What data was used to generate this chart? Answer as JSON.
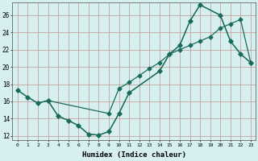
{
  "xlabel": "Humidex (Indice chaleur)",
  "bg_color": "#d6f0f0",
  "grid_color": "#c8a0a0",
  "line_color": "#1a6b5a",
  "line1_x": [
    0,
    1,
    2,
    3,
    4,
    5,
    6,
    7,
    8,
    9,
    10,
    11,
    14,
    15,
    16,
    17,
    18,
    20,
    21,
    22,
    23
  ],
  "line1_y": [
    17.3,
    16.5,
    15.8,
    16.1,
    14.3,
    13.8,
    13.2,
    12.2,
    12.1,
    12.5,
    14.6,
    17.0,
    19.5,
    21.5,
    22.5,
    25.3,
    27.2,
    26.0,
    23.0,
    21.5,
    20.5
  ],
  "line2_x": [
    0,
    1,
    2,
    3,
    9,
    10,
    11,
    12,
    13,
    14,
    15,
    16,
    17,
    18,
    19,
    20,
    21,
    22,
    23
  ],
  "line2_y": [
    17.3,
    16.5,
    15.8,
    16.1,
    14.6,
    17.5,
    18.2,
    19.0,
    19.8,
    20.5,
    21.5,
    22.0,
    22.5,
    23.0,
    23.5,
    24.5,
    25.0,
    25.5,
    20.5
  ],
  "line3_x": [
    3,
    4,
    5,
    6,
    7,
    8,
    9,
    10,
    11,
    14,
    15,
    16,
    17,
    18,
    20,
    21,
    22,
    23
  ],
  "line3_y": [
    16.1,
    14.3,
    13.8,
    13.2,
    12.2,
    12.1,
    12.5,
    14.6,
    17.0,
    19.5,
    21.5,
    22.5,
    25.3,
    27.2,
    26.0,
    23.0,
    21.5,
    20.5
  ],
  "ylim": [
    11.5,
    27.5
  ],
  "xlim": [
    -0.5,
    23.5
  ],
  "yticks": [
    12,
    14,
    16,
    18,
    20,
    22,
    24,
    26
  ],
  "xticks": [
    0,
    1,
    2,
    3,
    4,
    5,
    6,
    7,
    8,
    9,
    10,
    11,
    12,
    13,
    14,
    15,
    16,
    17,
    18,
    19,
    20,
    21,
    22,
    23
  ]
}
